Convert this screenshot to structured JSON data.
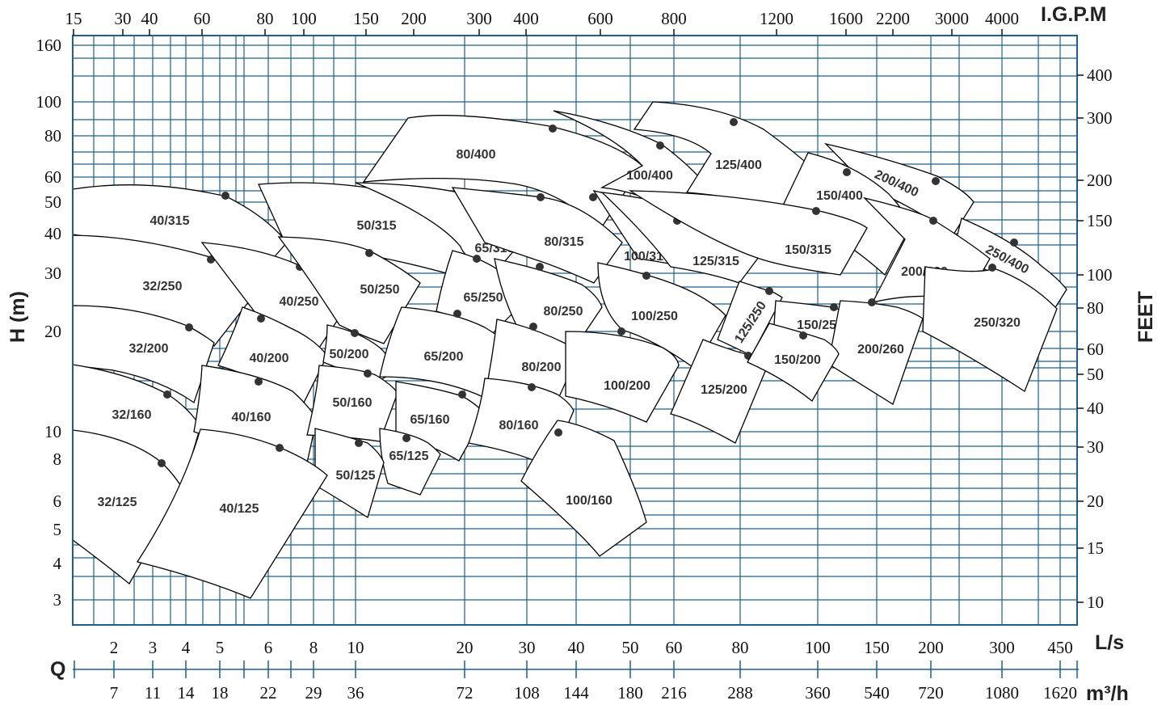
{
  "chart_data": {
    "type": "pump-selection-chart",
    "title": "",
    "axes": {
      "left_label": "H (m)",
      "right_label": "FEET",
      "top_label": "I.G.P.M",
      "bottom_ls_label": "L/s",
      "bottom_m3h_label": "m³/h",
      "q_label": "Q",
      "left_ticks": [
        "160",
        "100",
        "80",
        "60",
        "50",
        "40",
        "30",
        "20",
        "10",
        "8",
        "6",
        "5",
        "4",
        "3"
      ],
      "right_ticks": [
        "400",
        "300",
        "200",
        "150",
        "100",
        "80",
        "60",
        "50",
        "40",
        "30",
        "20",
        "15",
        "10"
      ],
      "top_ticks": [
        "15",
        "30",
        "40",
        "60",
        "80",
        "100",
        "150",
        "200",
        "300",
        "400",
        "600",
        "800",
        "1200",
        "1600",
        "2200",
        "3000",
        "4000"
      ],
      "bottom_ls_ticks": [
        "2",
        "3",
        "4",
        "5",
        "6",
        "8",
        "10",
        "20",
        "30",
        "40",
        "50",
        "60",
        "80",
        "100",
        "150",
        "200",
        "300",
        "450"
      ],
      "bottom_m3h_ticks": [
        "7",
        "11",
        "14",
        "18",
        "22",
        "29",
        "36",
        "72",
        "108",
        "144",
        "180",
        "216",
        "288",
        "360",
        "540",
        "720",
        "1080",
        "1620"
      ]
    },
    "grid": true,
    "pump_models": [
      "80/400",
      "100/400",
      "125/400",
      "200/400",
      "40/315",
      "50/315",
      "65/315",
      "80/315",
      "100/315",
      "125/315",
      "150/400",
      "150/315",
      "250/400",
      "32/250",
      "40/250",
      "50/250",
      "65/250",
      "80/250",
      "100/250",
      "200/320",
      "250/320",
      "32/200",
      "40/200",
      "50/200",
      "65/200",
      "80/200",
      "100/200",
      "125/250",
      "150/250",
      "200/260",
      "125/200",
      "150/200",
      "32/160",
      "40/160",
      "50/160",
      "65/160",
      "80/160",
      "65/125",
      "50/125",
      "32/125",
      "40/125",
      "100/160"
    ]
  },
  "colors": {
    "grid": "#1f5f8b",
    "outline": "#000000",
    "marker": "#333333"
  }
}
